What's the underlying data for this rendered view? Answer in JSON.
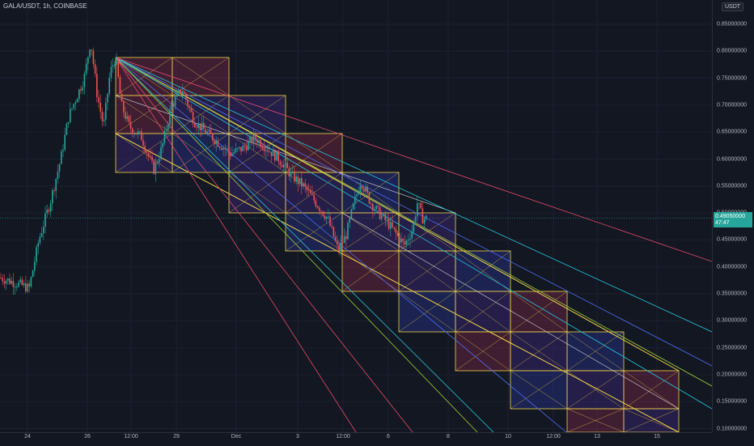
{
  "header": {
    "symbol_title": "GALA/USDT, 1h, COINBASE",
    "currency": "USDT"
  },
  "price_axis": {
    "ticks": [
      "0.85000000",
      "0.80000000",
      "0.75000000",
      "0.70000000",
      "0.65000000",
      "0.60000000",
      "0.55000000",
      "0.50000000",
      "0.45000000",
      "0.40000000",
      "0.35000000",
      "0.30000000",
      "0.25000000",
      "0.20000000",
      "0.15000000",
      "0.10000000"
    ],
    "current_price": "0.49050000",
    "countdown": "47:47",
    "current_price_color": "#26a69a"
  },
  "time_axis": {
    "ticks": [
      "24",
      "26",
      "12:00",
      "29",
      "Dec",
      "3",
      "12:00",
      "6",
      "8",
      "10",
      "12:00",
      "13",
      "15"
    ]
  },
  "colors": {
    "background": "#131722",
    "up_candle": "#26a69a",
    "down_candle": "#ef5350",
    "fib_box": "#f0d34a",
    "fan_red": "#e54b6a",
    "fan_blue": "#4e6cf0",
    "fan_teal": "#26c6da",
    "fan_green": "#9ed13b"
  },
  "chart_data": {
    "type": "candlestick",
    "symbol": "GALA/USDT",
    "interval": "1h",
    "exchange": "COINBASE",
    "ylim": [
      0.09,
      0.86
    ],
    "x": [
      "24",
      "26",
      "29",
      "Dec",
      "3",
      "6",
      "8",
      "10",
      "13",
      "15"
    ],
    "close_approx": [
      0.37,
      0.72,
      0.66,
      0.63,
      0.58,
      0.46,
      0.49,
      null,
      null,
      null
    ],
    "current_price": 0.4905
  }
}
